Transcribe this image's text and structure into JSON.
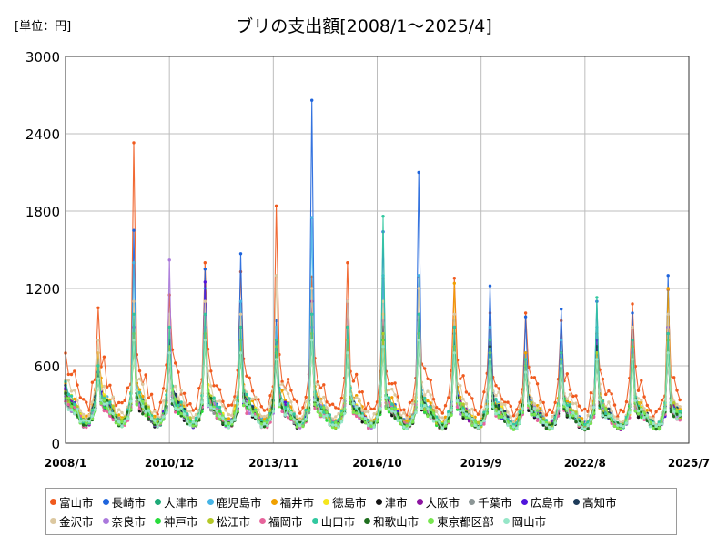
{
  "chart_data": {
    "type": "line",
    "title": "ブリの支出額[2008/1～2025/4]",
    "unit_label": "[単位：円]",
    "xlabel": "",
    "ylabel": "",
    "ylim": [
      0,
      3000
    ],
    "yticks": [
      0,
      600,
      1200,
      1800,
      2400,
      3000
    ],
    "x_start": "2008-01",
    "x_end": "2025-07",
    "xticks": [
      "2008/1",
      "2010/12",
      "2013/11",
      "2016/10",
      "2019/9",
      "2022/8",
      "2025/7"
    ],
    "grid": true,
    "legend_position": "bottom",
    "series": [
      {
        "name": "富山市",
        "color": "#f05a1e",
        "baseline": 500,
        "peaks": [
          1050,
          2330,
          1150,
          1400,
          1330,
          1840,
          1290,
          1400,
          1280,
          1290,
          1280,
          1010,
          1010,
          950,
          850,
          1080,
          1190
        ]
      },
      {
        "name": "長崎市",
        "color": "#1e64dc",
        "baseline": 300,
        "peaks": [
          600,
          1650,
          850,
          1350,
          1470,
          950,
          2660,
          1100,
          1640,
          2100,
          950,
          1220,
          980,
          1040,
          1100,
          1010,
          1300
        ]
      },
      {
        "name": "大津市",
        "color": "#1eaa78",
        "baseline": 280,
        "peaks": [
          550,
          950,
          900,
          900,
          800,
          700,
          1000,
          900,
          900,
          1000,
          800,
          700,
          650,
          700,
          800,
          800,
          900
        ]
      },
      {
        "name": "鹿児島市",
        "color": "#46b4e6",
        "baseline": 300,
        "peaks": [
          650,
          1400,
          800,
          1200,
          1100,
          900,
          1750,
          900,
          1300,
          1300,
          900,
          900,
          700,
          800,
          900,
          900,
          1000
        ]
      },
      {
        "name": "福井市",
        "color": "#f0a000",
        "baseline": 330,
        "peaks": [
          700,
          1000,
          900,
          1000,
          900,
          800,
          1000,
          900,
          1000,
          1000,
          1240,
          800,
          700,
          700,
          800,
          900,
          1200
        ]
      },
      {
        "name": "徳島市",
        "color": "#f5e61e",
        "baseline": 300,
        "peaks": [
          600,
          800,
          700,
          800,
          700,
          700,
          800,
          700,
          900,
          900,
          800,
          700,
          600,
          600,
          700,
          700,
          800
        ]
      },
      {
        "name": "津市",
        "color": "#141414",
        "baseline": 260,
        "peaks": [
          500,
          800,
          700,
          900,
          800,
          700,
          900,
          800,
          800,
          800,
          700,
          750,
          600,
          600,
          700,
          700,
          800
        ]
      },
      {
        "name": "大阪市",
        "color": "#8c14a0",
        "baseline": 280,
        "peaks": [
          550,
          900,
          800,
          1000,
          900,
          800,
          1100,
          1100,
          950,
          1000,
          900,
          800,
          600,
          700,
          750,
          800,
          850
        ]
      },
      {
        "name": "千葉市",
        "color": "#8c9696",
        "baseline": 280,
        "peaks": [
          500,
          800,
          700,
          800,
          700,
          600,
          800,
          700,
          800,
          800,
          700,
          650,
          600,
          600,
          650,
          700,
          700
        ]
      },
      {
        "name": "広島市",
        "color": "#5014dc",
        "baseline": 280,
        "peaks": [
          550,
          900,
          800,
          1250,
          900,
          800,
          1000,
          900,
          900,
          1000,
          900,
          800,
          600,
          700,
          800,
          900,
          900
        ]
      },
      {
        "name": "高知市",
        "color": "#1e3c5a",
        "baseline": 290,
        "peaks": [
          550,
          900,
          800,
          900,
          900,
          800,
          1000,
          900,
          900,
          950,
          850,
          800,
          600,
          700,
          750,
          800,
          800
        ]
      },
      {
        "name": "金沢市",
        "color": "#dcc8a0",
        "baseline": 380,
        "peaks": [
          800,
          1100,
          1000,
          1100,
          1000,
          1300,
          1200,
          1100,
          1100,
          1200,
          1000,
          700,
          650,
          700,
          700,
          900,
          1000
        ]
      },
      {
        "name": "奈良市",
        "color": "#aa78dc",
        "baseline": 270,
        "peaks": [
          500,
          900,
          1420,
          900,
          800,
          700,
          900,
          800,
          800,
          850,
          750,
          700,
          600,
          600,
          650,
          700,
          700
        ]
      },
      {
        "name": "神戸市",
        "color": "#28dc3c",
        "baseline": 270,
        "peaks": [
          500,
          800,
          700,
          800,
          700,
          700,
          800,
          700,
          800,
          800,
          700,
          650,
          550,
          600,
          650,
          650,
          700
        ]
      },
      {
        "name": "松江市",
        "color": "#b4c828",
        "baseline": 290,
        "peaks": [
          600,
          850,
          750,
          850,
          800,
          750,
          850,
          800,
          850,
          850,
          750,
          700,
          600,
          650,
          700,
          750,
          800
        ]
      },
      {
        "name": "福岡市",
        "color": "#e6649b",
        "baseline": 260,
        "peaks": [
          500,
          800,
          700,
          800,
          700,
          650,
          800,
          700,
          750,
          800,
          700,
          650,
          550,
          600,
          650,
          650,
          700
        ]
      },
      {
        "name": "山口市",
        "color": "#32c8a0",
        "baseline": 300,
        "peaks": [
          600,
          1000,
          900,
          1000,
          900,
          800,
          1000,
          900,
          1760,
          1000,
          900,
          800,
          650,
          700,
          1130,
          800,
          850
        ]
      },
      {
        "name": "和歌山市",
        "color": "#1e6e1e",
        "baseline": 270,
        "peaks": [
          500,
          800,
          700,
          800,
          700,
          650,
          800,
          700,
          750,
          800,
          700,
          650,
          550,
          600,
          650,
          650,
          700
        ]
      },
      {
        "name": "東京都区部",
        "color": "#78e650",
        "baseline": 270,
        "peaks": [
          500,
          800,
          700,
          800,
          700,
          650,
          800,
          700,
          750,
          800,
          700,
          650,
          550,
          600,
          650,
          650,
          700
        ]
      },
      {
        "name": "岡山市",
        "color": "#96e6c8",
        "baseline": 270,
        "peaks": [
          500,
          800,
          700,
          800,
          700,
          650,
          800,
          700,
          750,
          800,
          700,
          650,
          550,
          600,
          650,
          650,
          700
        ]
      }
    ]
  }
}
